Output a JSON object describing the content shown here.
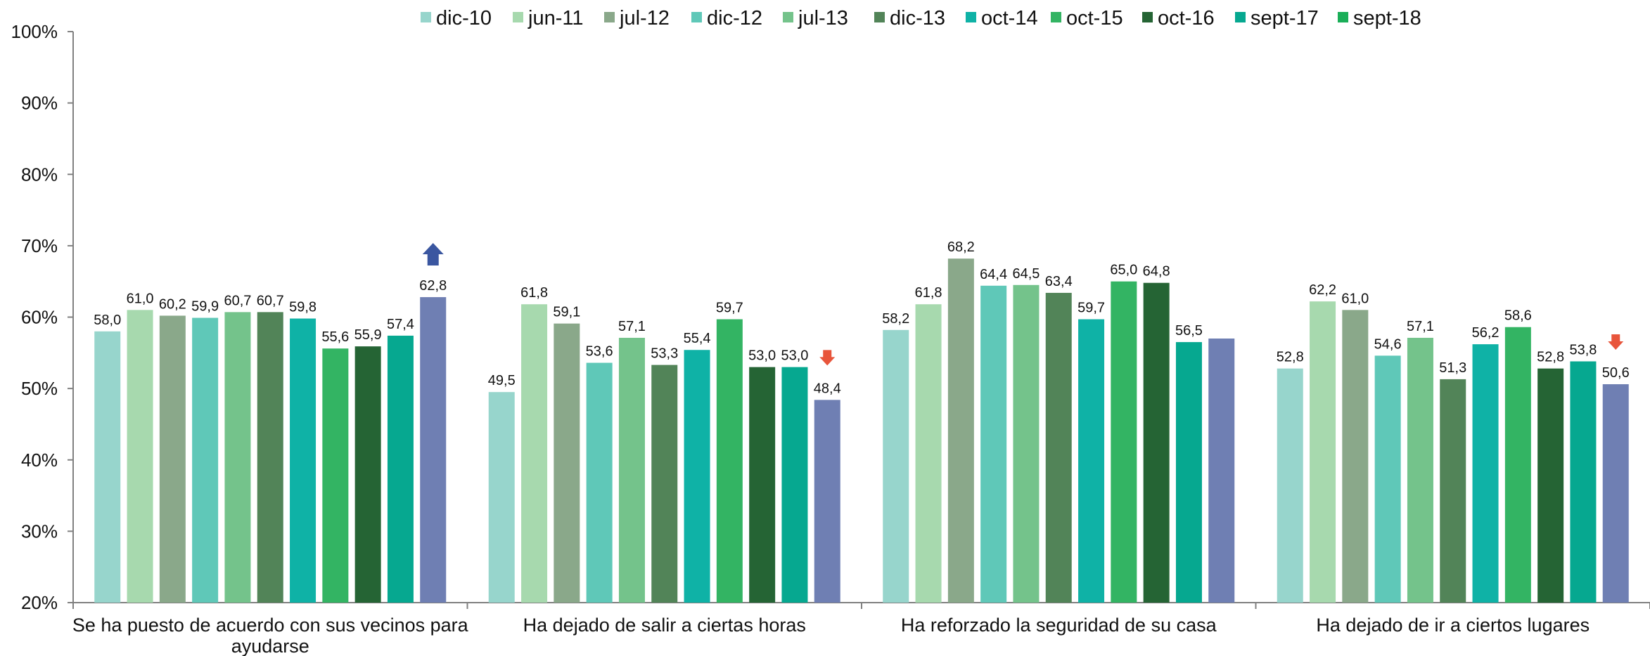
{
  "chart_data": {
    "type": "bar",
    "ylim": [
      20,
      100
    ],
    "ytick_labels": [
      "20%",
      "30%",
      "40%",
      "50%",
      "60%",
      "70%",
      "80%",
      "90%",
      "100%"
    ],
    "legend_position": "top",
    "categories": [
      [
        "Se ha puesto de acuerdo con sus vecinos para",
        "ayudarse"
      ],
      [
        "Ha dejado de salir a ciertas horas"
      ],
      [
        "Ha reforzado la seguridad de su casa"
      ],
      [
        "Ha dejado de ir a ciertos lugares"
      ]
    ],
    "series": [
      {
        "name": "dic-10",
        "color": "#97d5cc",
        "values": [
          58.0,
          49.5,
          58.2,
          52.8
        ],
        "labels": [
          "58,0",
          "49,5",
          "58,2",
          "52,8"
        ]
      },
      {
        "name": "jun-11",
        "color": "#a7d9ae",
        "values": [
          61.0,
          61.8,
          61.8,
          62.2
        ],
        "labels": [
          "61,0",
          "61,8",
          "61,8",
          "62,2"
        ]
      },
      {
        "name": "jul-12",
        "color": "#8aa88a",
        "values": [
          60.2,
          59.1,
          68.2,
          61.0
        ],
        "labels": [
          "60,2",
          "59,1",
          "68,2",
          "61,0"
        ]
      },
      {
        "name": "dic-12",
        "color": "#5fc8b8",
        "values": [
          59.9,
          53.6,
          64.4,
          54.6
        ],
        "labels": [
          "59,9",
          "53,6",
          "64,4",
          "54,6"
        ]
      },
      {
        "name": "jul-13",
        "color": "#74c38b",
        "values": [
          60.7,
          57.1,
          64.5,
          57.1
        ],
        "labels": [
          "60,7",
          "57,1",
          "64,5",
          "57,1"
        ]
      },
      {
        "name": "dic-13",
        "color": "#528458",
        "values": [
          60.7,
          53.3,
          63.4,
          51.3
        ],
        "labels": [
          "60,7",
          "53,3",
          "63,4",
          "51,3"
        ]
      },
      {
        "name": "oct-14",
        "color": "#0fb2a6",
        "values": [
          59.8,
          55.4,
          59.7,
          56.2
        ],
        "labels": [
          "59,8",
          "55,4",
          "59,7",
          "56,2"
        ]
      },
      {
        "name": "oct-15",
        "color": "#33b463",
        "values": [
          55.6,
          59.7,
          65.0,
          58.6
        ],
        "labels": [
          "55,6",
          "59,7",
          "65,0",
          "58,6"
        ]
      },
      {
        "name": "oct-16",
        "color": "#256434",
        "values": [
          55.9,
          53.0,
          64.8,
          52.8
        ],
        "labels": [
          "55,9",
          "53,0",
          "64,8",
          "52,8"
        ]
      },
      {
        "name": "sept-17",
        "color": "#06a890",
        "values": [
          57.4,
          53.0,
          56.5,
          53.8
        ],
        "labels": [
          "57,4",
          "53,0",
          "56,5",
          "53,8"
        ]
      },
      {
        "name": "sept-18",
        "color": "#6f7fb3",
        "legend_color": "#1aae58",
        "values": [
          62.8,
          48.4,
          57.0,
          50.6
        ],
        "labels": [
          "62,8",
          "48,4",
          "",
          "50,6"
        ]
      }
    ],
    "annotations": [
      {
        "category_index": 0,
        "series_index": 10,
        "symbol": "arrow-up",
        "color": "#3a56a0"
      },
      {
        "category_index": 1,
        "series_index": 10,
        "symbol": "arrow-down",
        "color": "#e8553b"
      },
      {
        "category_index": 3,
        "series_index": 10,
        "symbol": "arrow-down",
        "color": "#e8553b"
      }
    ]
  }
}
